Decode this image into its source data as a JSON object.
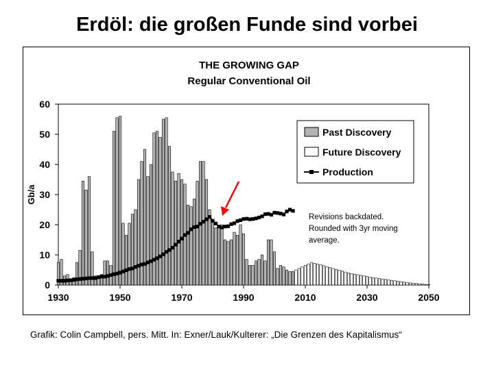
{
  "slide": {
    "title": "Erdöl: die großen Funde sind vorbei",
    "caption": "Grafik: Colin Campbell, pers. Mitt. In: Exner/Lauk/Kulterer: „Die Grenzen des Kapitalismus“"
  },
  "chart_data": {
    "type": "bar",
    "title": "THE GROWING GAP",
    "subtitle": "Regular Conventional Oil",
    "xlabel": "",
    "ylabel": "Gb/a",
    "xlim": [
      1930,
      2050
    ],
    "ylim": [
      0,
      60
    ],
    "xticks": [
      1930,
      1950,
      1970,
      1990,
      2010,
      2030,
      2050
    ],
    "yticks": [
      0,
      10,
      20,
      30,
      40,
      50,
      60
    ],
    "grid": false,
    "legend_position": "top-right",
    "legend": [
      "Past Discovery",
      "Future Discovery",
      "Production"
    ],
    "colors": {
      "past": "#b4b4b4",
      "future": "#ffffff",
      "production": "#000000",
      "arrow": "#ff0000"
    },
    "annotation": [
      "Revisions backdated.",
      "Rounded with 3yr moving",
      "average."
    ],
    "series": [
      {
        "name": "Past Discovery",
        "kind": "bar",
        "x": [
          1930,
          1931,
          1932,
          1933,
          1934,
          1935,
          1936,
          1937,
          1938,
          1939,
          1940,
          1941,
          1942,
          1943,
          1944,
          1945,
          1946,
          1947,
          1948,
          1949,
          1950,
          1951,
          1952,
          1953,
          1954,
          1955,
          1956,
          1957,
          1958,
          1959,
          1960,
          1961,
          1962,
          1963,
          1964,
          1965,
          1966,
          1967,
          1968,
          1969,
          1970,
          1971,
          1972,
          1973,
          1974,
          1975,
          1976,
          1977,
          1978,
          1979,
          1980,
          1981,
          1982,
          1983,
          1984,
          1985,
          1986,
          1987,
          1988,
          1989,
          1990,
          1991,
          1992,
          1993,
          1994,
          1995,
          1996,
          1997,
          1998,
          1999,
          2000,
          2001,
          2002,
          2003,
          2004,
          2005,
          2006
        ],
        "values": [
          7.5,
          8.5,
          3,
          3.5,
          2,
          2.5,
          7.5,
          11.5,
          34.5,
          31.5,
          36,
          11,
          3,
          3,
          3.5,
          8,
          8,
          6.5,
          51,
          55.5,
          56,
          20.5,
          16.5,
          20.5,
          23.5,
          25,
          35,
          41,
          45,
          36,
          40,
          50.5,
          51,
          49,
          55,
          55.5,
          46,
          37.5,
          34.5,
          37,
          35,
          33.5,
          26.5,
          26,
          28.5,
          34.5,
          41,
          41,
          35,
          25,
          20.5,
          19,
          19,
          20,
          15,
          14.5,
          15,
          17.5,
          16.5,
          20,
          17,
          8.5,
          6.5,
          6.5,
          8,
          8.5,
          10,
          8,
          15,
          15,
          11,
          5.5,
          6.5,
          6,
          5,
          4.5,
          4.5
        ]
      },
      {
        "name": "Future Discovery",
        "kind": "bar",
        "x": [
          2007,
          2008,
          2009,
          2010,
          2011,
          2012,
          2013,
          2014,
          2015,
          2016,
          2017,
          2018,
          2019,
          2020,
          2021,
          2022,
          2023,
          2024,
          2025,
          2026,
          2027,
          2028,
          2029,
          2030,
          2031,
          2032,
          2033,
          2034,
          2035,
          2036,
          2037,
          2038,
          2039,
          2040,
          2041,
          2042,
          2043,
          2044,
          2045,
          2046,
          2047,
          2048,
          2049,
          2050
        ],
        "values": [
          5,
          5.5,
          6,
          6.5,
          7,
          7.5,
          7.2,
          7,
          6.7,
          6.4,
          6.1,
          5.8,
          5.5,
          5.2,
          4.9,
          4.6,
          4.3,
          4,
          3.8,
          3.6,
          3.4,
          3.2,
          3,
          2.8,
          2.6,
          2.45,
          2.3,
          2.15,
          2,
          1.85,
          1.7,
          1.55,
          1.4,
          1.25,
          1.1,
          0.95,
          0.8,
          0.7,
          0.6,
          0.5,
          0.4,
          0.3,
          0.2,
          0.1
        ]
      },
      {
        "name": "Production",
        "kind": "line",
        "x": [
          1930,
          1931,
          1932,
          1933,
          1934,
          1935,
          1936,
          1937,
          1938,
          1939,
          1940,
          1941,
          1942,
          1943,
          1944,
          1945,
          1946,
          1947,
          1948,
          1949,
          1950,
          1951,
          1952,
          1953,
          1954,
          1955,
          1956,
          1957,
          1958,
          1959,
          1960,
          1961,
          1962,
          1963,
          1964,
          1965,
          1966,
          1967,
          1968,
          1969,
          1970,
          1971,
          1972,
          1973,
          1974,
          1975,
          1976,
          1977,
          1978,
          1979,
          1980,
          1981,
          1982,
          1983,
          1984,
          1985,
          1986,
          1987,
          1988,
          1989,
          1990,
          1991,
          1992,
          1993,
          1994,
          1995,
          1996,
          1997,
          1998,
          1999,
          2000,
          2001,
          2002,
          2003,
          2004,
          2005,
          2006
        ],
        "values": [
          1.4,
          1.4,
          1.4,
          1.5,
          1.6,
          1.7,
          1.9,
          2,
          2.1,
          2.2,
          2.3,
          2.3,
          2.3,
          2.6,
          2.8,
          2.8,
          3,
          3.3,
          3.6,
          3.8,
          4.1,
          4.5,
          4.9,
          5.3,
          5.5,
          6,
          6.4,
          6.8,
          7,
          7.5,
          7.9,
          8.4,
          8.9,
          9.5,
          10.2,
          11,
          11.6,
          12.4,
          13.4,
          14.4,
          15.4,
          16.6,
          17.3,
          18.5,
          19.2,
          19.4,
          20.3,
          21,
          21.8,
          22.6,
          21.3,
          20.4,
          19.4,
          19.1,
          19.4,
          19.5,
          20.2,
          20.5,
          21.2,
          21.5,
          21.9,
          22,
          21.8,
          21.9,
          22.1,
          22.4,
          22.8,
          23.5,
          23.6,
          23.3,
          24,
          23.9,
          23.7,
          23.4,
          24.4,
          25,
          24.6
        ]
      }
    ]
  }
}
